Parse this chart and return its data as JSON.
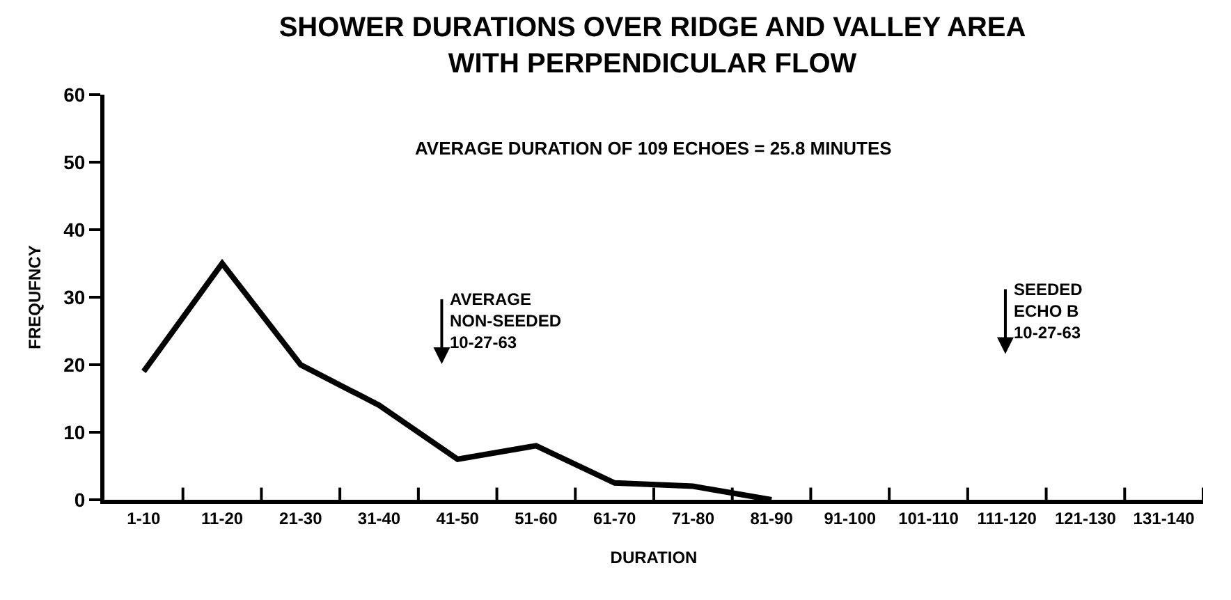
{
  "chart_data": {
    "type": "line",
    "title": "SHOWER DURATIONS OVER RIDGE AND VALLEY AREA\nWITH PERPENDICULAR FLOW",
    "subtitle": "AVERAGE DURATION OF 109 ECHOES = 25.8 MINUTES",
    "xlabel": "DURATION",
    "ylabel": "FREQUFNCY",
    "categories": [
      "1-10",
      "11-20",
      "21-30",
      "31-40",
      "41-50",
      "51-60",
      "61-70",
      "71-80",
      "81-90",
      "91-100",
      "101-110",
      "111-120",
      "121-130",
      "131-140"
    ],
    "series": [
      {
        "color": "#000000",
        "values": [
          19,
          35,
          20,
          14,
          6,
          8,
          2.5,
          2,
          0,
          null,
          null,
          null,
          null,
          null
        ]
      }
    ],
    "ylim": [
      0,
      60
    ],
    "yticks": [
      0,
      10,
      20,
      30,
      40,
      50,
      60
    ],
    "grid": false,
    "marker": "none",
    "line_style": "solid",
    "annotations": [
      "AVERAGE\nNON-SEEDED\n10-27-63",
      "SEEDED\nECHO B\n10-27-63"
    ]
  }
}
